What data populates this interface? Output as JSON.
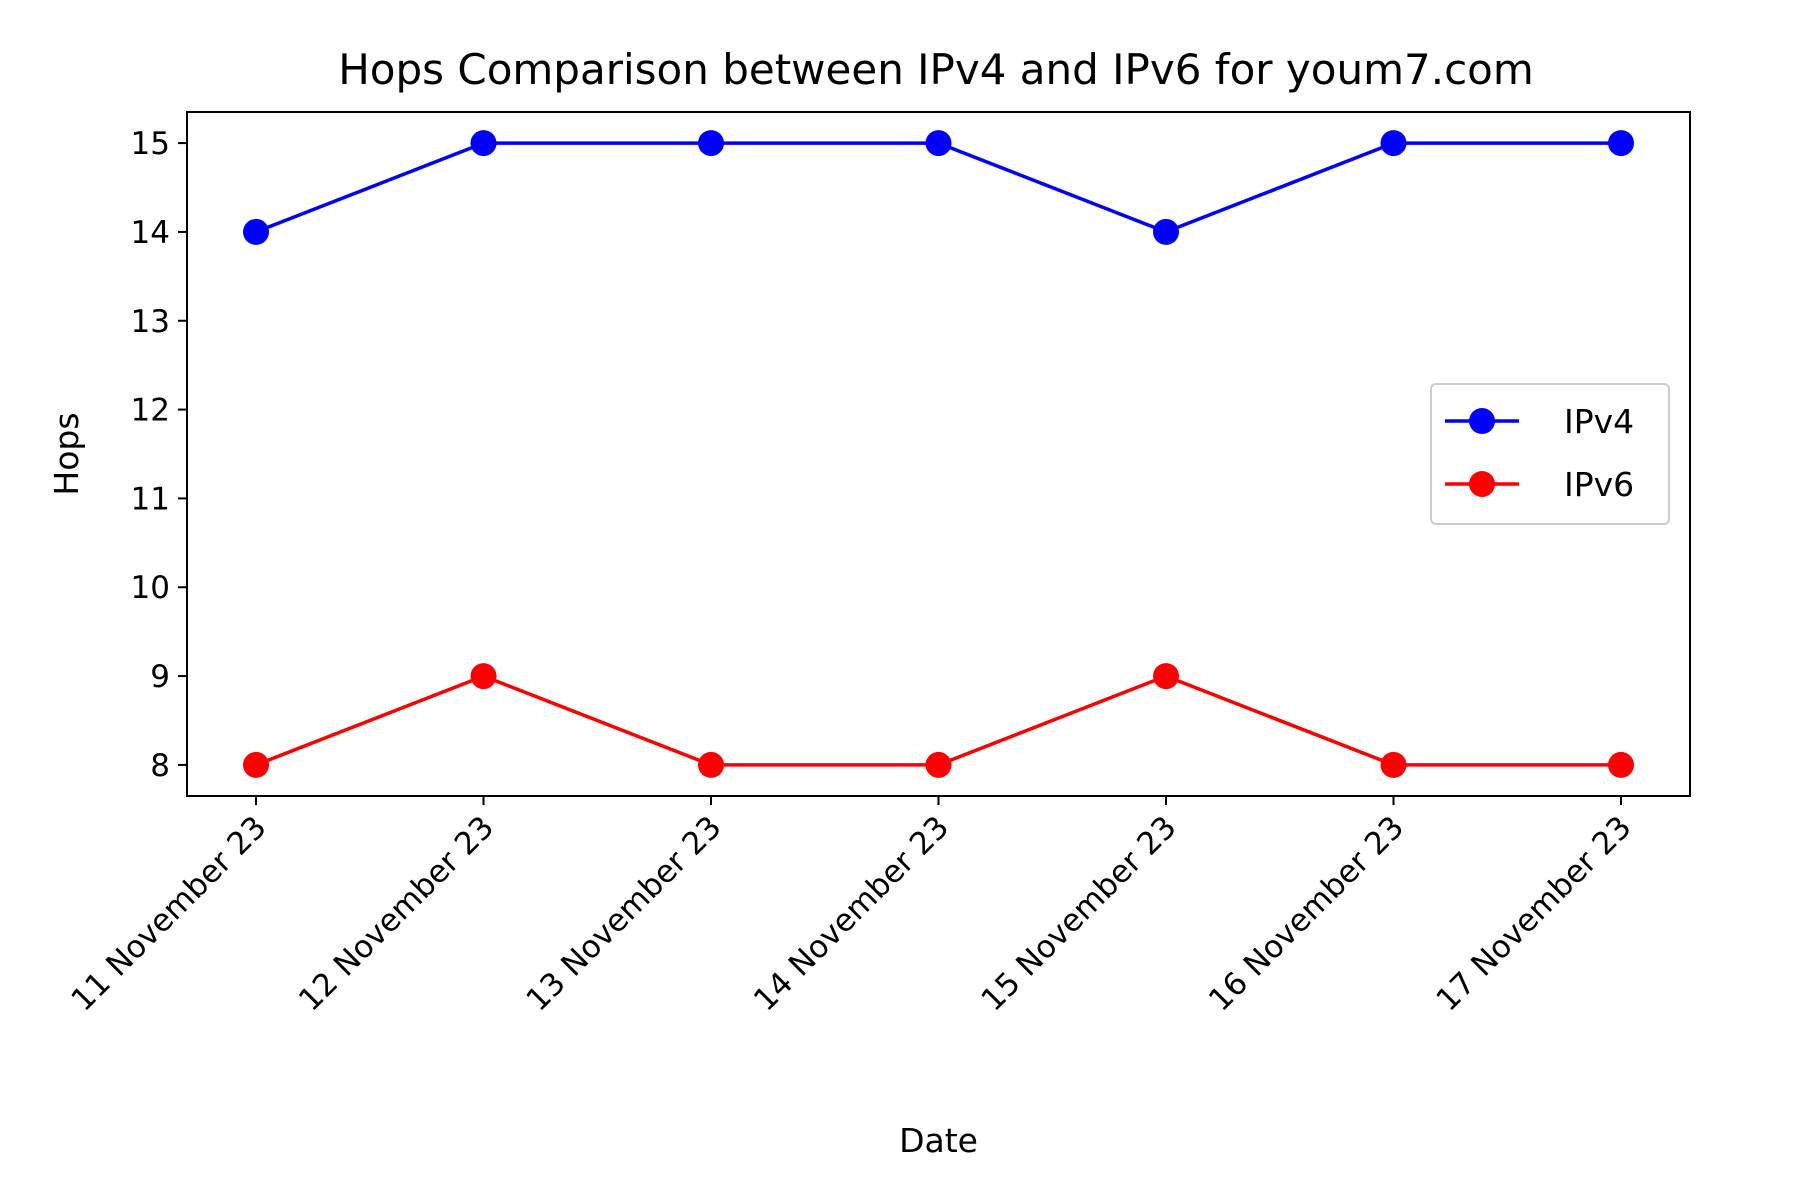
{
  "chart_data": {
    "type": "line",
    "title": "Hops Comparison between IPv4 and IPv6 for youm7.com",
    "xlabel": "Date",
    "ylabel": "Hops",
    "categories": [
      "11 November 23",
      "12 November 23",
      "13 November 23",
      "14 November 23",
      "15 November 23",
      "16 November 23",
      "17 November 23"
    ],
    "yticks": [
      8,
      9,
      10,
      11,
      12,
      13,
      14,
      15
    ],
    "ylim": [
      7.65,
      15.35
    ],
    "grid": false,
    "legend_position": "center-right",
    "series": [
      {
        "name": "IPv4",
        "color": "#0000ff",
        "marker": "circle",
        "values": [
          14,
          15,
          15,
          15,
          14,
          15,
          15
        ]
      },
      {
        "name": "IPv6",
        "color": "#ff0000",
        "marker": "circle",
        "values": [
          8,
          9,
          8,
          8,
          9,
          8,
          8
        ]
      }
    ]
  }
}
